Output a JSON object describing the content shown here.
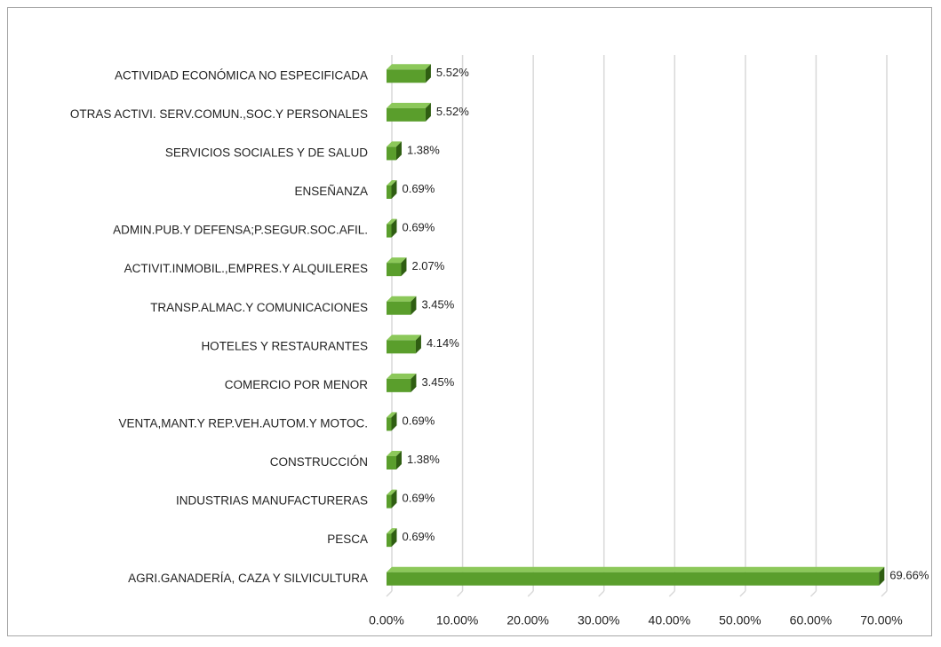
{
  "chart_data": {
    "type": "bar",
    "orientation": "horizontal",
    "categories": [
      "ACTIVIDAD ECONÓMICA NO ESPECIFICADA",
      "OTRAS ACTIVI. SERV.COMUN.,SOC.Y PERSONALES",
      "SERVICIOS SOCIALES Y DE SALUD",
      "ENSEÑANZA",
      "ADMIN.PUB.Y DEFENSA;P.SEGUR.SOC.AFIL.",
      "ACTIVIT.INMOBIL.,EMPRES.Y ALQUILERES",
      "TRANSP.ALMAC.Y COMUNICACIONES",
      "HOTELES Y RESTAURANTES",
      "COMERCIO POR MENOR",
      "VENTA,MANT.Y REP.VEH.AUTOM.Y MOTOC.",
      "CONSTRUCCIÓN",
      "INDUSTRIAS MANUFACTURERAS",
      "PESCA",
      "AGRI.GANADERÍA, CAZA Y SILVICULTURA"
    ],
    "values": [
      5.52,
      5.52,
      1.38,
      0.69,
      0.69,
      2.07,
      3.45,
      4.14,
      3.45,
      0.69,
      1.38,
      0.69,
      0.69,
      69.66
    ],
    "value_labels": [
      "5.52%",
      "5.52%",
      "1.38%",
      "0.69%",
      "0.69%",
      "2.07%",
      "3.45%",
      "4.14%",
      "3.45%",
      "0.69%",
      "1.38%",
      "0.69%",
      "0.69%",
      "69.66%"
    ],
    "color": "#5a9e2c",
    "xlim": [
      0,
      70
    ],
    "xticks": [
      {
        "value": 0,
        "label": "0.00%"
      },
      {
        "value": 10,
        "label": "10.00%"
      },
      {
        "value": 20,
        "label": "20.00%"
      },
      {
        "value": 30,
        "label": "30.00%"
      },
      {
        "value": 40,
        "label": "40.00%"
      },
      {
        "value": 50,
        "label": "50.00%"
      },
      {
        "value": 60,
        "label": "60.00%"
      },
      {
        "value": 70,
        "label": "70.00%"
      }
    ],
    "grid": true
  }
}
